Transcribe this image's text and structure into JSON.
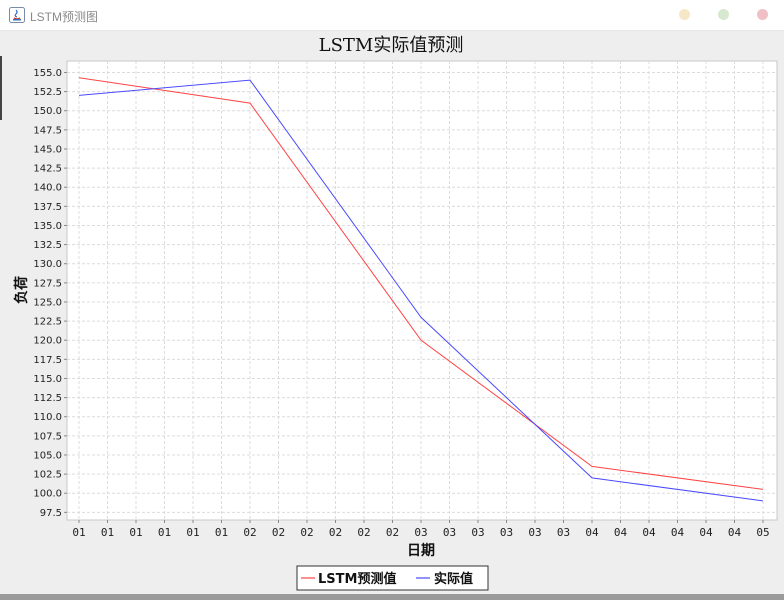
{
  "window": {
    "title": "LSTM预测图",
    "colors": {
      "minimize": "#f6e7c7",
      "maximize": "#d6e8cf",
      "close": "#f1bfc6"
    }
  },
  "chart_data": {
    "type": "line",
    "title": "LSTM实际值预测",
    "xlabel": "日期",
    "ylabel": "负荷",
    "x": [
      "01",
      "01",
      "01",
      "01",
      "01",
      "01",
      "02",
      "02",
      "02",
      "02",
      "02",
      "02",
      "03",
      "03",
      "03",
      "03",
      "03",
      "03",
      "04",
      "04",
      "04",
      "04",
      "04",
      "04",
      "05"
    ],
    "ylim": [
      96.5,
      156.5
    ],
    "yticks": [
      97.5,
      100.0,
      102.5,
      105.0,
      107.5,
      110.0,
      112.5,
      115.0,
      117.5,
      120.0,
      122.5,
      125.0,
      127.5,
      130.0,
      132.5,
      135.0,
      137.5,
      140.0,
      142.5,
      145.0,
      147.5,
      150.0,
      152.5,
      155.0
    ],
    "grid": true,
    "legend": "bottom-center",
    "series": [
      {
        "name": "LSTM预测值",
        "color": "#ff4444",
        "points": [
          [
            0,
            154.3
          ],
          [
            6,
            151.0
          ],
          [
            12,
            120.0
          ],
          [
            18,
            103.5
          ],
          [
            24,
            100.5
          ]
        ]
      },
      {
        "name": "实际值",
        "color": "#4a4aff",
        "points": [
          [
            0,
            152.0
          ],
          [
            6,
            154.0
          ],
          [
            12,
            123.0
          ],
          [
            18,
            102.0
          ],
          [
            24,
            99.0
          ]
        ]
      }
    ]
  }
}
